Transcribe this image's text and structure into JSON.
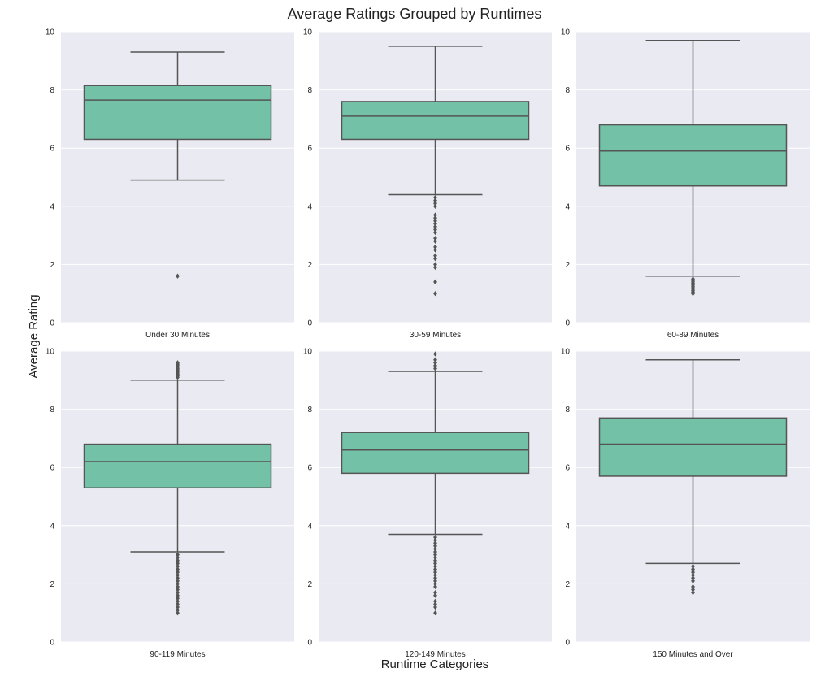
{
  "chart_data": {
    "type": "boxplot",
    "title": "Average Ratings Grouped by Runtimes",
    "xlabel": "Runtime Categories",
    "ylabel": "Average Rating",
    "ylim": [
      0,
      10
    ],
    "yticks": [
      0,
      2,
      4,
      6,
      8,
      10
    ],
    "grid": true,
    "colors": {
      "background": "#eaeaf2",
      "box_fill": "#73c1a6",
      "line": "#555555",
      "grid": "#ffffff"
    },
    "panels": [
      {
        "category": "Under 30 Minutes",
        "whisker_low": 4.9,
        "q1": 6.3,
        "median": 7.65,
        "q3": 8.15,
        "whisker_high": 9.3,
        "outliers": [
          1.6
        ]
      },
      {
        "category": "30-59 Minutes",
        "whisker_low": 4.4,
        "q1": 6.3,
        "median": 7.1,
        "q3": 7.6,
        "whisker_high": 9.5,
        "outliers": [
          4.3,
          4.2,
          4.1,
          4.0,
          3.7,
          3.6,
          3.5,
          3.4,
          3.3,
          3.2,
          3.1,
          2.9,
          2.8,
          2.6,
          2.5,
          2.3,
          2.2,
          2.0,
          1.9,
          1.4,
          1.0
        ]
      },
      {
        "category": "60-89 Minutes",
        "whisker_low": 1.6,
        "q1": 4.7,
        "median": 5.9,
        "q3": 6.8,
        "whisker_high": 9.7,
        "outliers": [
          1.5,
          1.45,
          1.4,
          1.35,
          1.3,
          1.25,
          1.2,
          1.15,
          1.1,
          1.05,
          1.0
        ]
      },
      {
        "category": "90-119 Minutes",
        "whisker_low": 3.1,
        "q1": 5.3,
        "median": 6.2,
        "q3": 6.8,
        "whisker_high": 9.0,
        "outliers": [
          9.1,
          9.15,
          9.2,
          9.25,
          9.3,
          9.35,
          9.4,
          9.45,
          9.5,
          9.55,
          9.6,
          3.0,
          2.9,
          2.8,
          2.7,
          2.6,
          2.5,
          2.4,
          2.3,
          2.2,
          2.1,
          2.0,
          1.9,
          1.8,
          1.7,
          1.6,
          1.5,
          1.4,
          1.3,
          1.2,
          1.1,
          1.0
        ]
      },
      {
        "category": "120-149 Minutes",
        "whisker_low": 3.7,
        "q1": 5.8,
        "median": 6.6,
        "q3": 7.2,
        "whisker_high": 9.3,
        "outliers": [
          9.4,
          9.5,
          9.6,
          9.7,
          9.9,
          3.6,
          3.5,
          3.4,
          3.3,
          3.2,
          3.1,
          3.0,
          2.9,
          2.8,
          2.7,
          2.6,
          2.5,
          2.4,
          2.3,
          2.2,
          2.1,
          2.0,
          1.9,
          1.7,
          1.6,
          1.4,
          1.3,
          1.2,
          1.0
        ]
      },
      {
        "category": "150 Minutes and Over",
        "whisker_low": 2.7,
        "q1": 5.7,
        "median": 6.8,
        "q3": 7.7,
        "whisker_high": 9.7,
        "outliers": [
          2.6,
          2.5,
          2.4,
          2.3,
          2.2,
          2.1,
          1.9,
          1.8,
          1.7
        ]
      }
    ]
  }
}
